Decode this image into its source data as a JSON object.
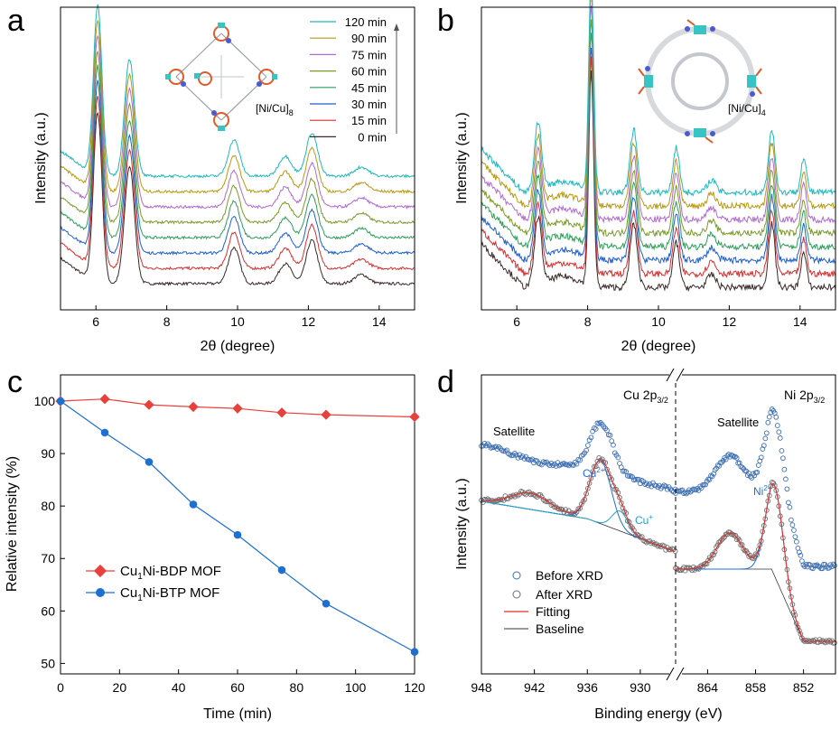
{
  "panels": {
    "a": {
      "letter": "a",
      "xlabel": "2θ (degree)",
      "ylabel": "Intensity (a.u.)",
      "xticks": [
        "6",
        "8",
        "10",
        "12",
        "14"
      ],
      "legend": [
        "120 min",
        "90 min",
        "75 min",
        "60 min",
        "45 min",
        "30 min",
        "15 min",
        "0 min"
      ],
      "inset_label": "[Ni/Cu]",
      "inset_sub": "8"
    },
    "b": {
      "letter": "b",
      "xlabel": "2θ (degree)",
      "ylabel": "Intensity (a.u.)",
      "xticks": [
        "6",
        "8",
        "10",
        "12",
        "14"
      ],
      "inset_label": "[Ni/Cu]",
      "inset_sub": "4"
    },
    "c": {
      "letter": "c",
      "xlabel": "Time (min)",
      "ylabel": "Relative intensity (%)",
      "xticks": [
        "0",
        "20",
        "40",
        "60",
        "80",
        "100",
        "120"
      ],
      "yticks": [
        "50",
        "60",
        "70",
        "80",
        "90",
        "100"
      ],
      "legend_bdp_pre": "Cu",
      "legend_bdp_sub": "1",
      "legend_bdp_post": "Ni-BDP MOF",
      "legend_btp_pre": "Cu",
      "legend_btp_sub": "1",
      "legend_btp_post": "Ni-BTP MOF"
    },
    "d": {
      "letter": "d",
      "xlabel": "Binding energy (eV)",
      "ylabel": "Intensity (a.u.)",
      "xticks_left": [
        "948",
        "942",
        "936",
        "930"
      ],
      "xticks_right": [
        "864",
        "858",
        "852"
      ],
      "cu_label_pre": "Cu 2p",
      "cu_label_sub": "3/2",
      "ni_label_pre": "Ni 2p",
      "ni_label_sub": "3/2",
      "satellite_left": "Satellite",
      "satellite_right": "Satellite",
      "cu2_label": "Cu",
      "cu2_sup": "2+",
      "cu1_label": "Cu",
      "cu1_sup": "+",
      "ni2_label": "Ni",
      "ni2_sup": "2+",
      "legend": [
        "Before XRD",
        "After XRD",
        "Fitting",
        "Baseline"
      ]
    }
  },
  "colors": {
    "bdp": "#e8413c",
    "btp": "#1f6fd1",
    "before": "#3b6db3",
    "after": "#6e6e6e",
    "fitting": "#e0302a",
    "baseline": "#333333",
    "series": [
      "#3a2a2a",
      "#d63031",
      "#1f5fd1",
      "#2e9e5a",
      "#7a9a2a",
      "#b06ad0",
      "#b89a10",
      "#20b8c0"
    ]
  },
  "chart_data": [
    {
      "panel": "a",
      "type": "line",
      "title": "",
      "xlabel": "2θ (degree)",
      "ylabel": "Intensity (a.u.)",
      "xlim": [
        5,
        15
      ],
      "series_names": [
        "0 min",
        "15 min",
        "30 min",
        "45 min",
        "60 min",
        "75 min",
        "90 min",
        "120 min"
      ],
      "peaks_2theta": [
        6.05,
        6.95,
        9.9,
        11.35,
        12.1,
        13.5
      ]
    },
    {
      "panel": "b",
      "type": "line",
      "title": "",
      "xlabel": "2θ (degree)",
      "ylabel": "Intensity (a.u.)",
      "xlim": [
        5,
        15
      ],
      "series_count": 8,
      "peaks_2theta": [
        6.6,
        8.1,
        9.3,
        10.5,
        11.5,
        13.2,
        14.1
      ]
    },
    {
      "panel": "c",
      "type": "line",
      "title": "",
      "xlabel": "Time (min)",
      "ylabel": "Relative intensity (%)",
      "xlim": [
        0,
        120
      ],
      "ylim": [
        48,
        105
      ],
      "x": [
        0,
        15,
        30,
        45,
        60,
        75,
        90,
        120
      ],
      "series": [
        {
          "name": "Cu1Ni-BDP MOF",
          "values": [
            100,
            100.4,
            99.3,
            98.9,
            98.6,
            97.8,
            97.4,
            97.0
          ]
        },
        {
          "name": "Cu1Ni-BTP MOF",
          "values": [
            100,
            94.0,
            88.4,
            80.3,
            74.5,
            67.8,
            61.4,
            52.2
          ]
        }
      ]
    },
    {
      "panel": "d",
      "type": "scatter",
      "title": "",
      "xlabel": "Binding energy (eV)",
      "ylabel": "Intensity (a.u.)",
      "xlim_left": [
        948,
        926
      ],
      "xlim_right": [
        868,
        848
      ],
      "series": [
        "Before XRD",
        "After XRD",
        "Fitting",
        "Baseline"
      ],
      "peaks_eV": {
        "Cu2+": 934.5,
        "Cu+": 932.5,
        "Ni2+": 855.6,
        "Cu satellite": 943,
        "Ni satellite": 861
      }
    }
  ]
}
